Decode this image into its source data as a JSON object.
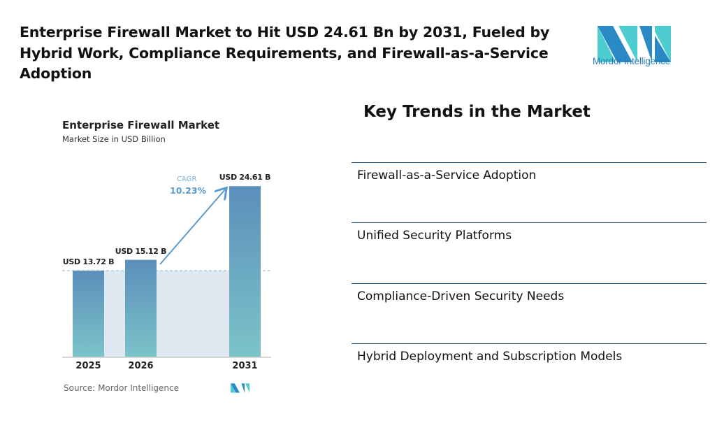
{
  "title": "Enterprise Firewall Market to Hit USD 24.61 Bn by 2031, Fueled by Hybrid Work, Compliance Requirements, and Firewall-as-a-Service Adoption",
  "logo": {
    "text": "Mordor Intelligence",
    "colors": [
      "#2a8ac6",
      "#4ecdd0"
    ]
  },
  "chart_data": {
    "type": "bar",
    "title": "Enterprise Firewall Market",
    "subtitle": "Market Size in USD Billion",
    "categories": [
      "2025",
      "2026",
      "2031"
    ],
    "values": [
      13.72,
      15.12,
      24.61
    ],
    "data_labels": [
      "USD 13.72 B",
      "USD 15.12 B",
      "USD 24.61 B"
    ],
    "annotation": {
      "label": "CAGR",
      "value": "10.23%"
    },
    "source": "Source: Mordor Intelligence",
    "colors": {
      "bar_top": "#5b8fbb",
      "bar_bottom": "#7cc3c9",
      "annotation": "#5a9bcf"
    }
  },
  "trends": {
    "title": "Key Trends in the Market",
    "items": [
      "Firewall-as-a-Service Adoption",
      "Unified Security Platforms",
      "Compliance-Driven Security Needs",
      "Hybrid Deployment and Subscription Models"
    ]
  }
}
